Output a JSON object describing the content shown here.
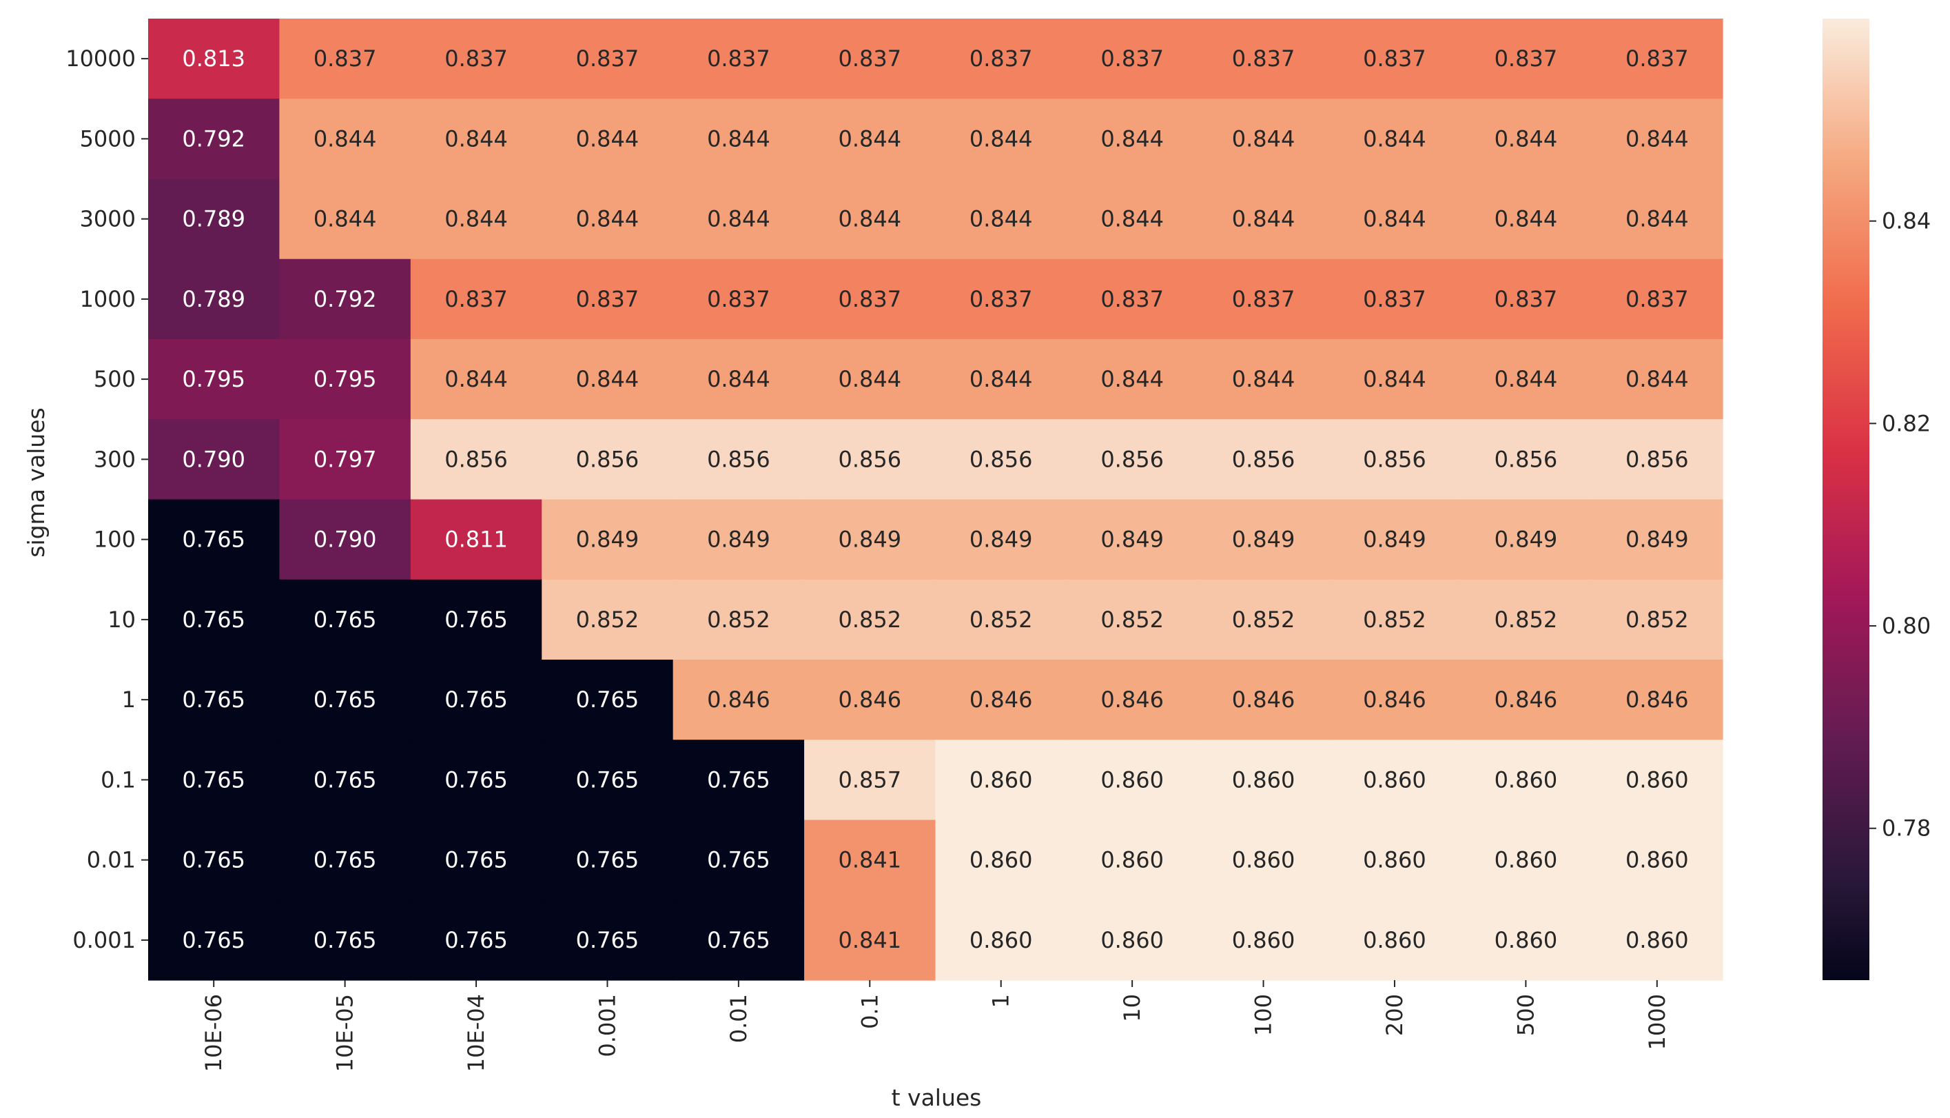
{
  "chart_data": {
    "type": "heatmap",
    "title": "",
    "xlabel": "t values",
    "ylabel": "sigma values",
    "x_categories": [
      "10E-06",
      "10E-05",
      "10E-04",
      "0.001",
      "0.01",
      "0.1",
      "1",
      "10",
      "100",
      "200",
      "500",
      "1000"
    ],
    "y_categories": [
      "10000",
      "5000",
      "3000",
      "1000",
      "500",
      "300",
      "100",
      "10",
      "1",
      "0.1",
      "0.01",
      "0.001"
    ],
    "values": [
      [
        0.813,
        0.837,
        0.837,
        0.837,
        0.837,
        0.837,
        0.837,
        0.837,
        0.837,
        0.837,
        0.837,
        0.837
      ],
      [
        0.792,
        0.844,
        0.844,
        0.844,
        0.844,
        0.844,
        0.844,
        0.844,
        0.844,
        0.844,
        0.844,
        0.844
      ],
      [
        0.789,
        0.844,
        0.844,
        0.844,
        0.844,
        0.844,
        0.844,
        0.844,
        0.844,
        0.844,
        0.844,
        0.844
      ],
      [
        0.789,
        0.792,
        0.837,
        0.837,
        0.837,
        0.837,
        0.837,
        0.837,
        0.837,
        0.837,
        0.837,
        0.837
      ],
      [
        0.795,
        0.795,
        0.844,
        0.844,
        0.844,
        0.844,
        0.844,
        0.844,
        0.844,
        0.844,
        0.844,
        0.844
      ],
      [
        0.79,
        0.797,
        0.856,
        0.856,
        0.856,
        0.856,
        0.856,
        0.856,
        0.856,
        0.856,
        0.856,
        0.856
      ],
      [
        0.765,
        0.79,
        0.811,
        0.849,
        0.849,
        0.849,
        0.849,
        0.849,
        0.849,
        0.849,
        0.849,
        0.849
      ],
      [
        0.765,
        0.765,
        0.765,
        0.852,
        0.852,
        0.852,
        0.852,
        0.852,
        0.852,
        0.852,
        0.852,
        0.852
      ],
      [
        0.765,
        0.765,
        0.765,
        0.765,
        0.846,
        0.846,
        0.846,
        0.846,
        0.846,
        0.846,
        0.846,
        0.846
      ],
      [
        0.765,
        0.765,
        0.765,
        0.765,
        0.765,
        0.857,
        0.86,
        0.86,
        0.86,
        0.86,
        0.86,
        0.86
      ],
      [
        0.765,
        0.765,
        0.765,
        0.765,
        0.765,
        0.841,
        0.86,
        0.86,
        0.86,
        0.86,
        0.86,
        0.86
      ],
      [
        0.765,
        0.765,
        0.765,
        0.765,
        0.765,
        0.841,
        0.86,
        0.86,
        0.86,
        0.86,
        0.86,
        0.86
      ]
    ],
    "value_format": "3 decimals",
    "colorscale": "rocket",
    "vmin": 0.765,
    "vmax": 0.86,
    "colorbar": {
      "ticks": [
        0.78,
        0.8,
        0.82,
        0.84
      ],
      "tick_labels": [
        "0.78",
        "0.80",
        "0.82",
        "0.84"
      ],
      "placement": "right"
    },
    "grid": false
  }
}
